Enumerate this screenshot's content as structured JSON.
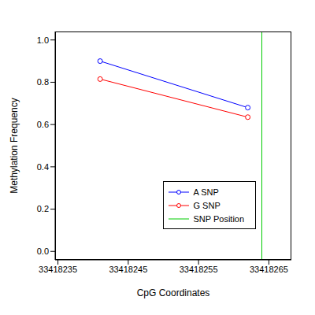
{
  "chart_data": {
    "type": "line",
    "x_label": "CpG Coordinates",
    "y_label": "Methylation Frequency",
    "xlim": [
      33418234.6,
      33418268.2
    ],
    "xticks": [
      33418235,
      33418245,
      33418255,
      33418265
    ],
    "ylim": [
      -0.04,
      1.04
    ],
    "yticks": [
      {
        "value": 0,
        "label": "0.0"
      },
      0.2,
      0.4,
      0.6,
      0.8,
      {
        "value": 1,
        "label": "1.0"
      }
    ],
    "legend": "lower right",
    "series": [
      {
        "name": "A SNP",
        "color": "#0000ff",
        "marker": "circle",
        "x": [
          33418241,
          33418262
        ],
        "values": [
          0.9,
          0.68
        ]
      },
      {
        "name": "G SNP",
        "color": "#ff0000",
        "marker": "circle",
        "x": [
          33418241,
          33418262
        ],
        "values": [
          0.815,
          0.635
        ]
      },
      {
        "name": "SNP Position",
        "type": "vline",
        "color": "#00cc00",
        "x": [
          33418264
        ]
      }
    ]
  }
}
